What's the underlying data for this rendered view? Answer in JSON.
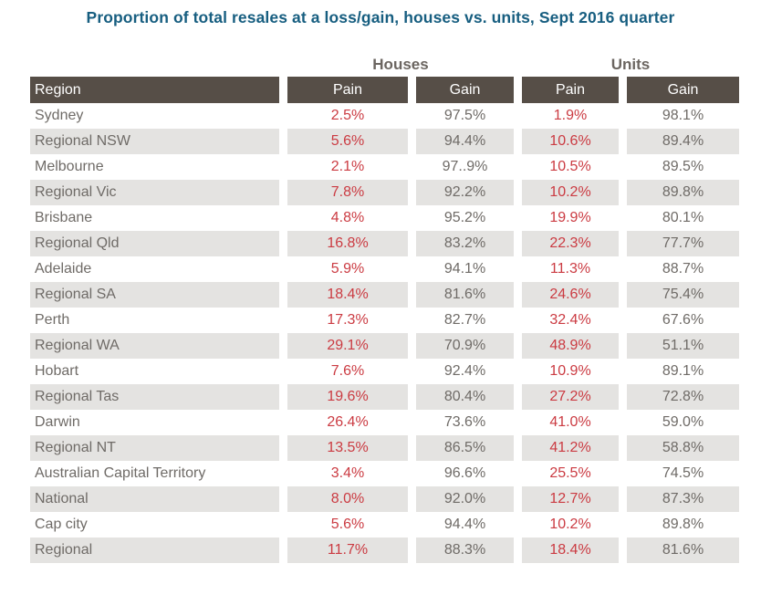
{
  "title": "Proportion of total resales at a loss/gain, houses vs. units, Sept 2016 quarter",
  "colors": {
    "title_text": "#175e80",
    "header_bg": "#564e47",
    "header_text": "#ffffff",
    "group_header_text": "#6b6560",
    "body_text": "#6f6b67",
    "pain_text": "#cb3b42",
    "stripe_bg": "#e4e3e1"
  },
  "chart_data": {
    "type": "table",
    "title": "Proportion of total resales at a loss/gain, houses vs. units, Sept 2016 quarter",
    "group_headers": [
      "Houses",
      "Units"
    ],
    "columns": [
      "Region",
      "Pain",
      "Gain",
      "Pain",
      "Gain"
    ],
    "rows": [
      {
        "region": "Sydney",
        "houses_pain": "2.5%",
        "houses_gain": "97.5%",
        "units_pain": "1.9%",
        "units_gain": "98.1%"
      },
      {
        "region": "Regional NSW",
        "houses_pain": "5.6%",
        "houses_gain": "94.4%",
        "units_pain": "10.6%",
        "units_gain": "89.4%"
      },
      {
        "region": "Melbourne",
        "houses_pain": "2.1%",
        "houses_gain": "97..9%",
        "units_pain": "10.5%",
        "units_gain": "89.5%"
      },
      {
        "region": "Regional Vic",
        "houses_pain": "7.8%",
        "houses_gain": "92.2%",
        "units_pain": "10.2%",
        "units_gain": "89.8%"
      },
      {
        "region": "Brisbane",
        "houses_pain": "4.8%",
        "houses_gain": "95.2%",
        "units_pain": "19.9%",
        "units_gain": "80.1%"
      },
      {
        "region": "Regional Qld",
        "houses_pain": "16.8%",
        "houses_gain": "83.2%",
        "units_pain": "22.3%",
        "units_gain": "77.7%"
      },
      {
        "region": "Adelaide",
        "houses_pain": "5.9%",
        "houses_gain": "94.1%",
        "units_pain": "11.3%",
        "units_gain": "88.7%"
      },
      {
        "region": "Regional SA",
        "houses_pain": "18.4%",
        "houses_gain": "81.6%",
        "units_pain": "24.6%",
        "units_gain": "75.4%"
      },
      {
        "region": "Perth",
        "houses_pain": "17.3%",
        "houses_gain": "82.7%",
        "units_pain": "32.4%",
        "units_gain": "67.6%"
      },
      {
        "region": "Regional WA",
        "houses_pain": "29.1%",
        "houses_gain": "70.9%",
        "units_pain": "48.9%",
        "units_gain": "51.1%"
      },
      {
        "region": "Hobart",
        "houses_pain": "7.6%",
        "houses_gain": "92.4%",
        "units_pain": "10.9%",
        "units_gain": "89.1%"
      },
      {
        "region": "Regional Tas",
        "houses_pain": "19.6%",
        "houses_gain": "80.4%",
        "units_pain": "27.2%",
        "units_gain": "72.8%"
      },
      {
        "region": "Darwin",
        "houses_pain": "26.4%",
        "houses_gain": "73.6%",
        "units_pain": "41.0%",
        "units_gain": "59.0%"
      },
      {
        "region": "Regional NT",
        "houses_pain": "13.5%",
        "houses_gain": "86.5%",
        "units_pain": "41.2%",
        "units_gain": "58.8%"
      },
      {
        "region": "Australian Capital Territory",
        "houses_pain": "3.4%",
        "houses_gain": "96.6%",
        "units_pain": "25.5%",
        "units_gain": "74.5%"
      },
      {
        "region": "National",
        "houses_pain": "8.0%",
        "houses_gain": "92.0%",
        "units_pain": "12.7%",
        "units_gain": "87.3%"
      },
      {
        "region": "Cap city",
        "houses_pain": "5.6%",
        "houses_gain": "94.4%",
        "units_pain": "10.2%",
        "units_gain": "89.8%"
      },
      {
        "region": "Regional",
        "houses_pain": "11.7%",
        "houses_gain": "88.3%",
        "units_pain": "18.4%",
        "units_gain": "81.6%"
      }
    ]
  }
}
